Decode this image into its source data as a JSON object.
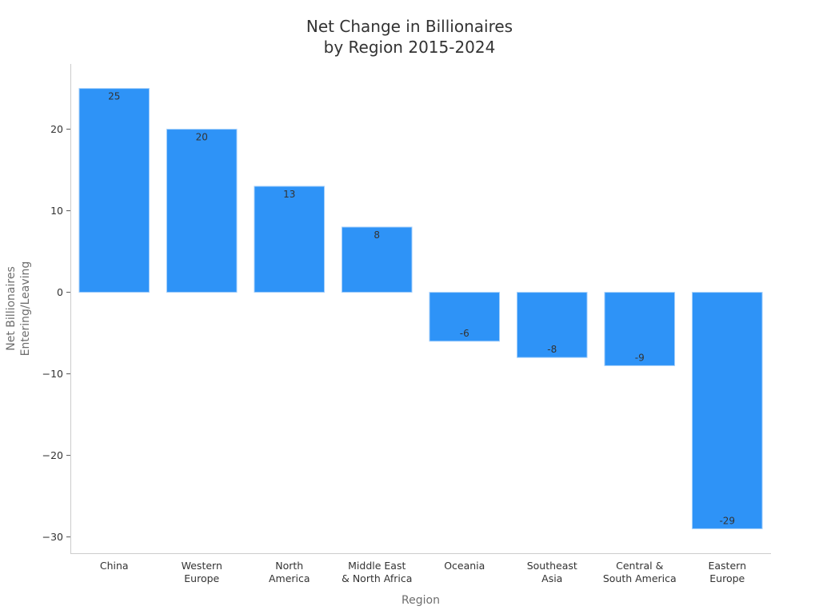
{
  "chart_data": {
    "type": "bar",
    "title": [
      "Net Change in Billionaires",
      "by Region 2015-2024"
    ],
    "xlabel": "Region",
    "ylabel": [
      "Net Billionaires",
      "Entering/Leaving"
    ],
    "categories": [
      [
        "China"
      ],
      [
        "Western",
        "Europe"
      ],
      [
        "North",
        "America"
      ],
      [
        "Middle East",
        "& North Africa"
      ],
      [
        "Oceania"
      ],
      [
        "Southeast",
        "Asia"
      ],
      [
        "Central &",
        "South America"
      ],
      [
        "Eastern",
        "Europe"
      ]
    ],
    "values": [
      25,
      20,
      13,
      8,
      -6,
      -8,
      -9,
      -29
    ],
    "data_labels": [
      "25",
      "20",
      "13",
      "8",
      "-6",
      "-8",
      "-9",
      "-29"
    ],
    "ylim": [
      -32,
      28
    ],
    "yticks": [
      20,
      10,
      0,
      -10,
      -20,
      -30
    ],
    "ytick_labels": [
      "20",
      "10",
      "0",
      "−10",
      "−20",
      "−30"
    ],
    "grid": false,
    "legend": "none",
    "colors": {
      "bar": "#2e93f7",
      "bar_edge": "#a8d1fb"
    }
  }
}
